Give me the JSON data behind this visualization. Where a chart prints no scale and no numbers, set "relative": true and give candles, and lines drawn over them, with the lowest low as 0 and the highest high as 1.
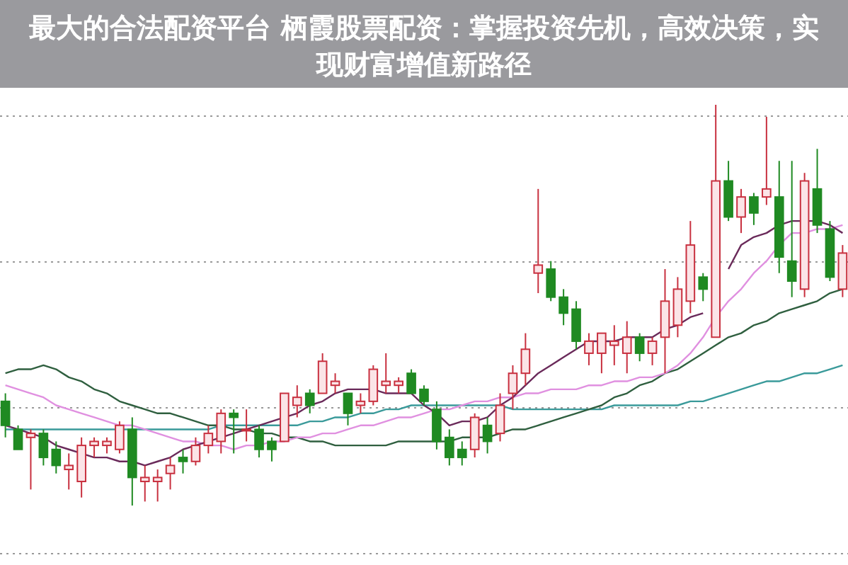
{
  "chart_data": {
    "type": "candlestick",
    "title": "最大的合法配资平台 栖霞股票配资：掌握投资先机，高效决策，实现财富增值新路径",
    "relative": true,
    "grid": "y",
    "categories": [
      null,
      null,
      null,
      null,
      null,
      null,
      null,
      null,
      null,
      null,
      null,
      null,
      null,
      null,
      null,
      null,
      null,
      null,
      null,
      null,
      null,
      null,
      null,
      null,
      null,
      null,
      null,
      null,
      null,
      null,
      null,
      null,
      null,
      null,
      null,
      null,
      null,
      null,
      null,
      null,
      null,
      null,
      null,
      null,
      null,
      null,
      null,
      null,
      null,
      null,
      null,
      null,
      null,
      null,
      null,
      null,
      null,
      null,
      null,
      null,
      null,
      null,
      null,
      null,
      null,
      null,
      null
    ],
    "ohlc": [
      [
        0.26,
        0.28,
        0.17,
        0.2
      ],
      [
        0.19,
        0.2,
        0.14,
        0.14
      ],
      [
        0.17,
        0.19,
        0.04,
        0.18
      ],
      [
        0.18,
        0.19,
        0.1,
        0.12
      ],
      [
        0.14,
        0.16,
        0.08,
        0.1
      ],
      [
        0.09,
        0.13,
        0.04,
        0.1
      ],
      [
        0.06,
        0.17,
        0.02,
        0.15
      ],
      [
        0.15,
        0.17,
        0.12,
        0.16
      ],
      [
        0.15,
        0.17,
        0.13,
        0.16
      ],
      [
        0.14,
        0.21,
        0.13,
        0.2
      ],
      [
        0.19,
        0.22,
        0,
        0.07
      ],
      [
        0.06,
        0.1,
        0.01,
        0.07
      ],
      [
        0.06,
        0.09,
        0.01,
        0.07
      ],
      [
        0.08,
        0.12,
        0.04,
        0.1
      ],
      [
        0.12,
        0.14,
        0.08,
        0.11
      ],
      [
        0.11,
        0.17,
        0.1,
        0.15
      ],
      [
        0.15,
        0.2,
        0.13,
        0.18
      ],
      [
        0.16,
        0.24,
        0.13,
        0.23
      ],
      [
        0.23,
        0.24,
        0.13,
        0.22
      ],
      [
        0.19,
        0.24,
        0.16,
        0.19
      ],
      [
        0.19,
        0.2,
        0.12,
        0.14
      ],
      [
        0.16,
        0.17,
        0.11,
        0.14
      ],
      [
        0.16,
        0.28,
        0.16,
        0.28
      ],
      [
        0.25,
        0.3,
        0.22,
        0.27
      ],
      [
        0.28,
        0.29,
        0.23,
        0.25
      ],
      [
        0.28,
        0.38,
        0.28,
        0.36
      ],
      [
        0.3,
        0.33,
        0.28,
        0.31
      ],
      [
        0.28,
        0.28,
        0.2,
        0.23
      ],
      [
        0.25,
        0.28,
        0.23,
        0.26
      ],
      [
        0.26,
        0.35,
        0.25,
        0.34
      ],
      [
        0.3,
        0.38,
        0.28,
        0.31
      ],
      [
        0.3,
        0.32,
        0.28,
        0.31
      ],
      [
        0.33,
        0.34,
        0.28,
        0.28
      ],
      [
        0.29,
        0.3,
        0.25,
        0.26
      ],
      [
        0.24,
        0.26,
        0.14,
        0.16
      ],
      [
        0.17,
        0.19,
        0.1,
        0.12
      ],
      [
        0.14,
        0.16,
        0.1,
        0.12
      ],
      [
        0.14,
        0.23,
        0.12,
        0.22
      ],
      [
        0.2,
        0.22,
        0.13,
        0.16
      ],
      [
        0.18,
        0.28,
        0.16,
        0.25
      ],
      [
        0.28,
        0.35,
        0.24,
        0.33
      ],
      [
        0.33,
        0.43,
        0.3,
        0.39
      ],
      [
        0.58,
        0.79,
        0.53,
        0.6
      ],
      [
        0.59,
        0.61,
        0.51,
        0.52
      ],
      [
        0.52,
        0.54,
        0.45,
        0.48
      ],
      [
        0.49,
        0.51,
        0.39,
        0.41
      ],
      [
        0.38,
        0.43,
        0.35,
        0.41
      ],
      [
        0.38,
        0.43,
        0.33,
        0.43
      ],
      [
        0.4,
        0.45,
        0.35,
        0.41
      ],
      [
        0.38,
        0.46,
        0.33,
        0.42
      ],
      [
        0.42,
        0.43,
        0.36,
        0.38
      ],
      [
        0.38,
        0.42,
        0.35,
        0.41
      ],
      [
        0.42,
        0.59,
        0.33,
        0.51
      ],
      [
        0.45,
        0.57,
        0.42,
        0.54
      ],
      [
        0.51,
        0.71,
        0.48,
        0.65
      ],
      [
        0.57,
        0.58,
        0.51,
        0.54
      ],
      [
        0.42,
        1,
        0.42,
        0.81
      ],
      [
        0.81,
        0.86,
        0.71,
        0.72
      ],
      [
        0.72,
        0.79,
        0.68,
        0.77
      ],
      [
        0.77,
        0.78,
        0.7,
        0.73
      ],
      [
        0.77,
        0.97,
        0.75,
        0.79
      ],
      [
        0.77,
        0.86,
        0.58,
        0.62
      ],
      [
        0.61,
        0.86,
        0.52,
        0.56
      ],
      [
        0.54,
        0.83,
        0.52,
        0.81
      ],
      [
        0.79,
        0.89,
        0.68,
        0.7
      ],
      [
        0.69,
        0.71,
        0.56,
        0.57
      ],
      [
        0.54,
        0.65,
        0.52,
        0.63
      ]
    ],
    "series": [
      {
        "type": "line",
        "color": "#3a9a9a",
        "values": [
          0.19,
          0.19,
          0.19,
          0.19,
          0.19,
          0.19,
          0.19,
          0.19,
          0.19,
          0.19,
          0.19,
          0.19,
          0.19,
          0.19,
          0.19,
          0.19,
          0.19,
          0.2,
          0.2,
          0.2,
          0.2,
          0.2,
          0.2,
          0.2,
          0.21,
          0.21,
          0.22,
          0.22,
          0.23,
          0.23,
          0.24,
          0.24,
          0.25,
          0.25,
          0.25,
          0.25,
          0.25,
          0.25,
          0.25,
          0.25,
          0.24,
          0.24,
          0.24,
          0.24,
          0.24,
          0.24,
          0.24,
          0.24,
          0.25,
          0.25,
          0.25,
          0.25,
          0.25,
          0.25,
          0.26,
          0.26,
          0.27,
          0.28,
          0.29,
          0.3,
          0.31,
          0.31,
          0.32,
          0.33,
          0.33,
          0.34,
          0.35
        ]
      },
      {
        "type": "line",
        "color": "#2f5f3f",
        "values": [
          0.33,
          0.34,
          0.34,
          0.35,
          0.34,
          0.32,
          0.31,
          0.29,
          0.28,
          0.26,
          0.25,
          0.24,
          0.23,
          0.23,
          0.22,
          0.21,
          0.2,
          0.2,
          0.19,
          0.19,
          0.18,
          0.18,
          0.17,
          0.17,
          0.16,
          0.16,
          0.15,
          0.15,
          0.15,
          0.15,
          0.15,
          0.16,
          0.16,
          0.16,
          0.16,
          0.16,
          0.17,
          0.17,
          0.17,
          0.18,
          0.19,
          0.19,
          0.2,
          0.21,
          0.22,
          0.23,
          0.24,
          0.25,
          0.27,
          0.28,
          0.3,
          0.31,
          0.33,
          0.34,
          0.36,
          0.38,
          0.4,
          0.42,
          0.43,
          0.45,
          0.46,
          0.48,
          0.49,
          0.5,
          0.51,
          0.53,
          0.54
        ]
      },
      {
        "type": "line",
        "color": "#e090e0",
        "values": [
          0.3,
          0.29,
          0.28,
          0.27,
          0.25,
          0.24,
          0.23,
          0.22,
          0.21,
          0.2,
          0.2,
          0.19,
          0.18,
          0.17,
          0.16,
          0.16,
          0.15,
          0.15,
          0.14,
          0.15,
          0.15,
          0.16,
          0.16,
          0.17,
          0.17,
          0.18,
          0.18,
          0.19,
          0.2,
          0.2,
          0.21,
          0.22,
          0.22,
          0.23,
          0.24,
          0.24,
          0.25,
          0.26,
          0.26,
          0.27,
          0.27,
          0.28,
          0.28,
          0.29,
          0.29,
          0.29,
          0.3,
          0.3,
          0.31,
          0.31,
          0.32,
          0.32,
          0.33,
          0.35,
          0.38,
          0.42,
          0.47,
          0.51,
          0.54,
          0.58,
          0.61,
          0.65,
          0.68,
          0.68,
          0.69,
          0.69,
          0.7
        ]
      },
      {
        "type": "line",
        "color": "#6a2a5a",
        "values": [
          0.2,
          0.19,
          0.18,
          0.17,
          0.15,
          0.14,
          0.13,
          0.12,
          0.12,
          0.11,
          0.11,
          0.1,
          0.11,
          0.12,
          0.14,
          0.15,
          0.16,
          0.17,
          0.18,
          0.19,
          0.2,
          0.21,
          0.22,
          0.23,
          0.25,
          0.26,
          0.28,
          0.29,
          0.29,
          0.29,
          0.28,
          0.28,
          0.28,
          0.25,
          0.23,
          0.2,
          0.21,
          0.21,
          0.22,
          0.25,
          0.27,
          0.3,
          0.33,
          0.35,
          0.37,
          0.39,
          0.41,
          0.41,
          0.41,
          0.42,
          0.42,
          0.42,
          0.44,
          0.45,
          0.47,
          0.48,
          null,
          0.59,
          0.65,
          0.67,
          0.68,
          0.7,
          0.71,
          0.71,
          0.71,
          0.7,
          0.68
        ]
      }
    ]
  }
}
